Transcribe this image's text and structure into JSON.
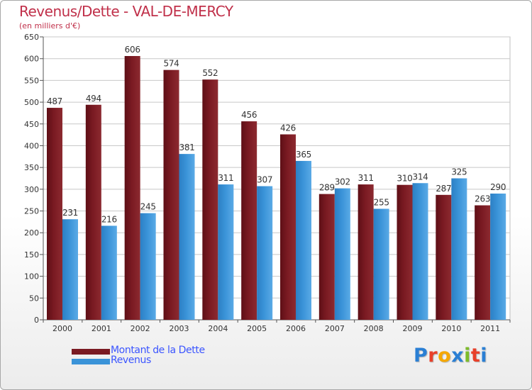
{
  "header": {
    "title": "Revenus/Dette - VAL-DE-MERCY",
    "subtitle": "(en milliers d'€)"
  },
  "colors": {
    "dette": "#7a1a22",
    "revenus": "#3a93d8",
    "text": "#c0304a",
    "legend_text": "#3b55ff"
  },
  "chart_data": {
    "type": "bar",
    "categories": [
      "2000",
      "2001",
      "2002",
      "2003",
      "2004",
      "2005",
      "2006",
      "2007",
      "2008",
      "2009",
      "2010",
      "2011"
    ],
    "series": [
      {
        "name": "Montant de la Dette",
        "values": [
          487,
          494,
          606,
          574,
          552,
          456,
          426,
          289,
          311,
          310,
          287,
          263
        ]
      },
      {
        "name": "Revenus",
        "values": [
          231,
          216,
          245,
          381,
          311,
          307,
          365,
          302,
          255,
          314,
          325,
          290
        ]
      }
    ],
    "ylim": [
      0,
      650
    ],
    "yticks": [
      0,
      50,
      100,
      150,
      200,
      250,
      300,
      350,
      400,
      450,
      500,
      550,
      600,
      650
    ],
    "grid": true,
    "legend_position": "bottom-left"
  },
  "legend": [
    {
      "label": "Montant de la Dette"
    },
    {
      "label": "Revenus"
    }
  ],
  "logo": {
    "letters": [
      "P",
      "r",
      "o",
      "x",
      "i",
      "t",
      "i"
    ],
    "colors": [
      "#2a7fd4",
      "#e8402a",
      "#f5a800",
      "#2a7fd4",
      "#7dbb2a",
      "#e8402a",
      "#2a7fd4"
    ]
  }
}
